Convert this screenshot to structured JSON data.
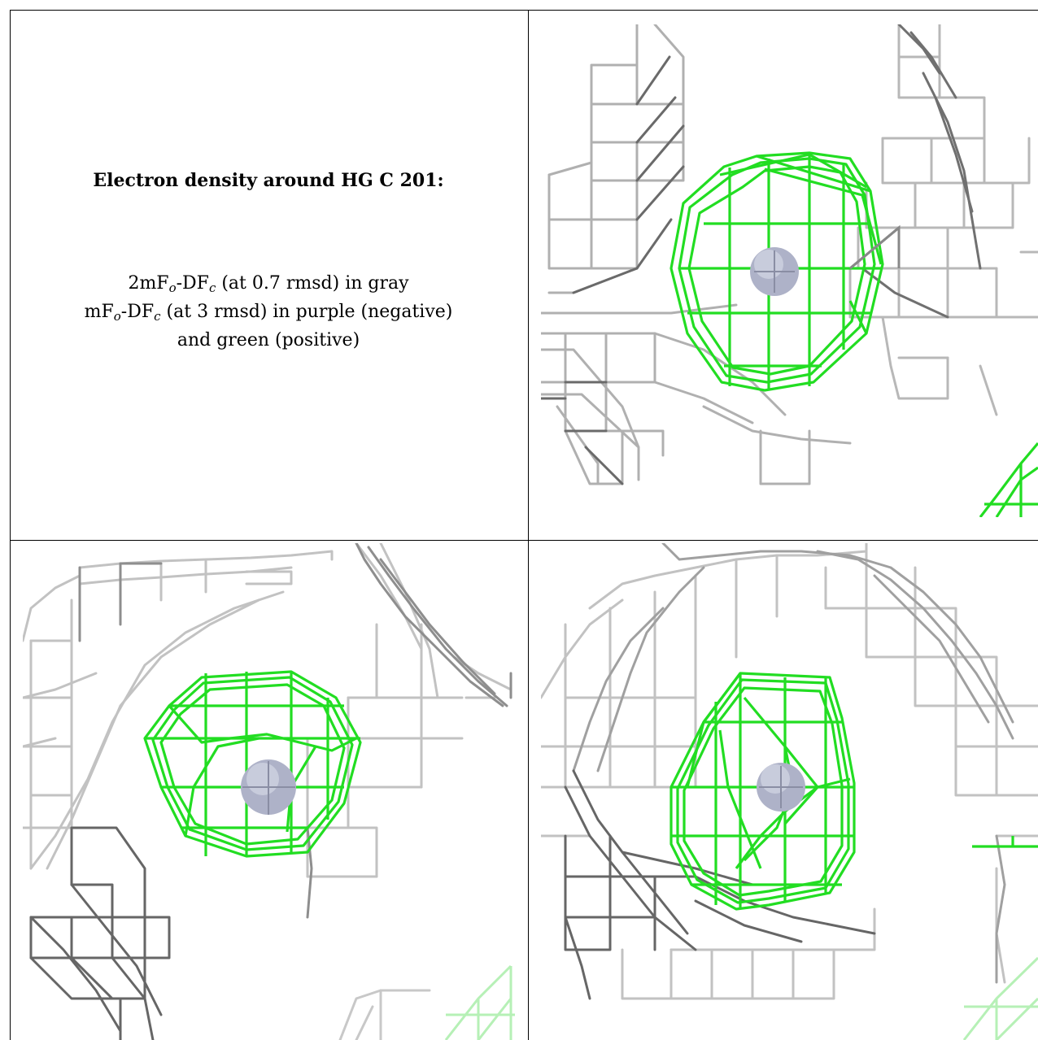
{
  "title": "Electron density around HG C 201:",
  "legend": {
    "line1": {
      "pre": "2mF",
      "sub1": "o",
      "mid": "-DF",
      "sub2": "c",
      "post": " (at 0.7 rmsd) in gray"
    },
    "line2": {
      "pre": "mF",
      "sub1": "o",
      "mid": "-DF",
      "sub2": "c",
      "post": " (at 3 rmsd) in purple (negative)"
    },
    "line3": "and green (positive)"
  },
  "colors": {
    "positive_density": "#22dd22",
    "negative_density": "#9b30ff",
    "density_2fofc": "#888888",
    "atom": "#b8bcd0"
  },
  "views": [
    {
      "name": "view-top-right"
    },
    {
      "name": "view-bottom-left"
    },
    {
      "name": "view-bottom-right"
    }
  ]
}
